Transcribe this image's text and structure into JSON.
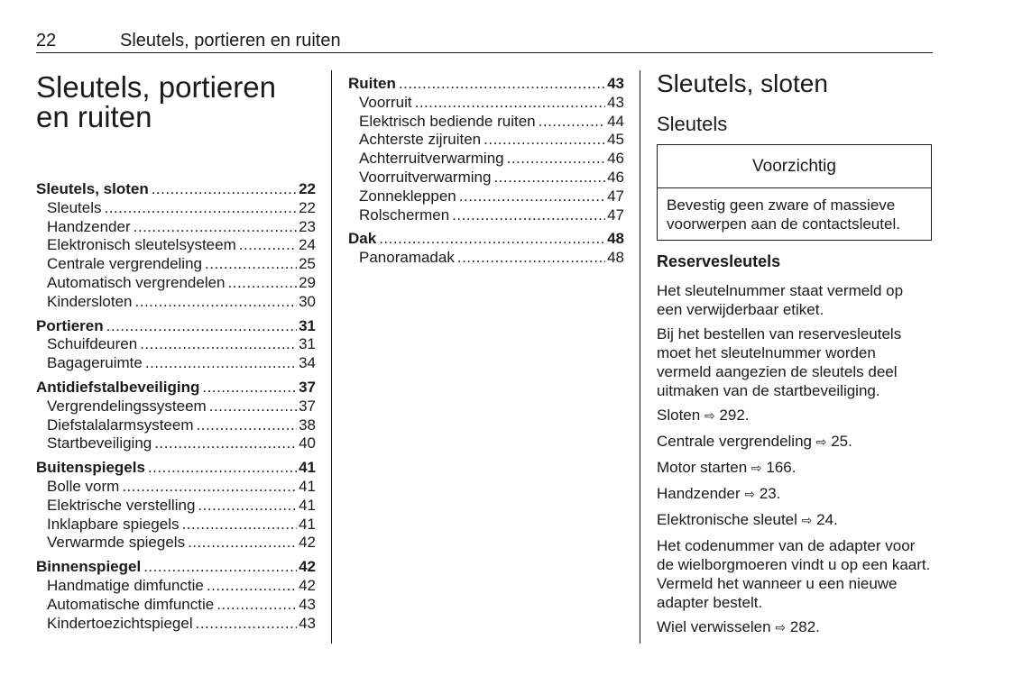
{
  "header": {
    "page_number": "22",
    "chapter_title": "Sleutels, portieren en ruiten"
  },
  "chapter": {
    "title_line1": "Sleutels, portieren",
    "title_line2": "en ruiten"
  },
  "toc_col1": [
    {
      "label": "Sleutels, sloten",
      "page": "22",
      "main": true
    },
    {
      "label": "Sleutels",
      "page": "22"
    },
    {
      "label": "Handzender",
      "page": "23"
    },
    {
      "label": "Elektronisch sleutelsysteem",
      "page": "24"
    },
    {
      "label": "Centrale vergrendeling",
      "page": "25"
    },
    {
      "label": "Automatisch vergrendelen",
      "page": "29"
    },
    {
      "label": "Kindersloten",
      "page": "30"
    },
    {
      "label": "Portieren",
      "page": "31",
      "main": true
    },
    {
      "label": "Schuifdeuren",
      "page": "31"
    },
    {
      "label": "Bagageruimte",
      "page": "34"
    },
    {
      "label": "Antidiefstalbeveiliging",
      "page": "37",
      "main": true
    },
    {
      "label": "Vergrendelingssysteem",
      "page": "37"
    },
    {
      "label": "Diefstalalarmsysteem",
      "page": "38"
    },
    {
      "label": "Startbeveiliging",
      "page": "40"
    },
    {
      "label": "Buitenspiegels",
      "page": "41",
      "main": true
    },
    {
      "label": "Bolle vorm",
      "page": "41"
    },
    {
      "label": "Elektrische verstelling",
      "page": "41"
    },
    {
      "label": "Inklapbare spiegels",
      "page": "41"
    },
    {
      "label": "Verwarmde spiegels",
      "page": "42"
    },
    {
      "label": "Binnenspiegel",
      "page": "42",
      "main": true
    },
    {
      "label": "Handmatige dimfunctie",
      "page": "42"
    },
    {
      "label": "Automatische dimfunctie",
      "page": "43"
    },
    {
      "label": "Kindertoezichtspiegel",
      "page": "43"
    }
  ],
  "toc_col2": [
    {
      "label": "Ruiten",
      "page": "43",
      "main": true
    },
    {
      "label": "Voorruit",
      "page": "43"
    },
    {
      "label": "Elektrisch bediende ruiten",
      "page": "44"
    },
    {
      "label": "Achterste zijruiten",
      "page": "45"
    },
    {
      "label": "Achterruitverwarming",
      "page": "46"
    },
    {
      "label": "Voorruitverwarming",
      "page": "46"
    },
    {
      "label": "Zonnekleppen",
      "page": "47"
    },
    {
      "label": "Rolschermen",
      "page": "47"
    },
    {
      "label": "Dak",
      "page": "48",
      "main": true
    },
    {
      "label": "Panoramadak",
      "page": "48"
    }
  ],
  "section": {
    "title": "Sleutels, sloten",
    "subtitle": "Sleutels",
    "caution": {
      "heading": "Voorzichtig",
      "text": "Bevestig geen zware of massieve voorwerpen aan de contactsleutel."
    },
    "subheading": "Reservesleutels",
    "paragraphs": [
      "Het sleutelnummer staat vermeld op een verwijderbaar etiket.",
      "Bij het bestellen van reservesleutels moet het sleutelnummer worden vermeld aangezien de sleutels deel uitmaken van de startbeveiliging."
    ],
    "refs": [
      {
        "text": "Sloten",
        "page": "292."
      },
      {
        "text": "Centrale vergrendeling",
        "page": "25."
      },
      {
        "text": "Motor starten",
        "page": "166."
      },
      {
        "text": "Handzender",
        "page": "23."
      },
      {
        "text": "Elektronische sleutel",
        "page": "24."
      }
    ],
    "paragraph_after": "Het codenummer van de adapter voor de wielborgmoeren vindt u op een kaart. Vermeld het wanneer u een nieuwe adapter bestelt.",
    "final_ref": {
      "text": "Wiel verwisselen",
      "page": "282."
    },
    "ref_icon": "arrow-right-outline-icon",
    "ref_glyph": "⇨"
  }
}
